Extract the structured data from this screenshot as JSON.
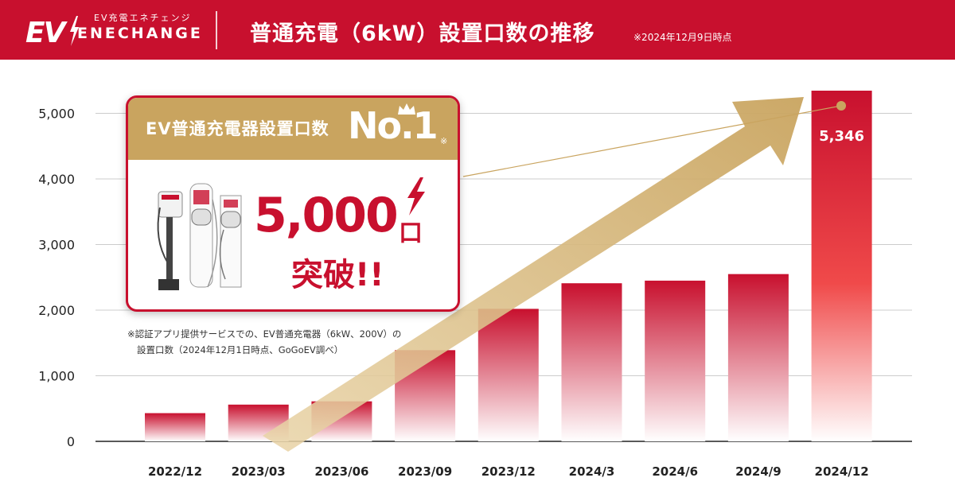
{
  "header": {
    "logo_ev": "EV",
    "logo_subtitle": "EV充電エネチェンジ",
    "logo_name": "ENECHANGE",
    "title": "普通充電（6kW）設置口数の推移",
    "note": "※2024年12月9日時点"
  },
  "badge": {
    "heading": "EV普通充電器設置口数",
    "no1": "No.1",
    "mark": "※",
    "big_number": "5,000",
    "unit": "口",
    "breakthrough": "突破!!"
  },
  "footnote": {
    "line1": "※認証アプリ提供サービスでの、EV普通充電器（6kW、200V）の",
    "line2": "設置口数（2024年12月1日時点、GoGoEV調べ）"
  },
  "colors": {
    "brand_red": "#c8102e",
    "gold": "#c9a45f",
    "bar_fade": "#ffffff"
  },
  "chart_data": {
    "type": "bar",
    "categories": [
      "2022/12",
      "2023/03",
      "2023/06",
      "2023/09",
      "2023/12",
      "2024/3",
      "2024/6",
      "2024/9",
      "2024/12"
    ],
    "values": [
      430,
      560,
      610,
      1390,
      2020,
      2410,
      2450,
      2550,
      5346
    ],
    "data_labels": [
      {
        "category": "2024/12",
        "text": "5,346"
      }
    ],
    "y_ticks": [
      0,
      1000,
      2000,
      3000,
      4000,
      5000
    ],
    "y_tick_labels": [
      "0",
      "1,000",
      "2,000",
      "3,000",
      "4,000",
      "5,000"
    ],
    "ylim": [
      0,
      5346
    ],
    "grid": true,
    "title": "",
    "xlabel": "",
    "ylabel": ""
  }
}
